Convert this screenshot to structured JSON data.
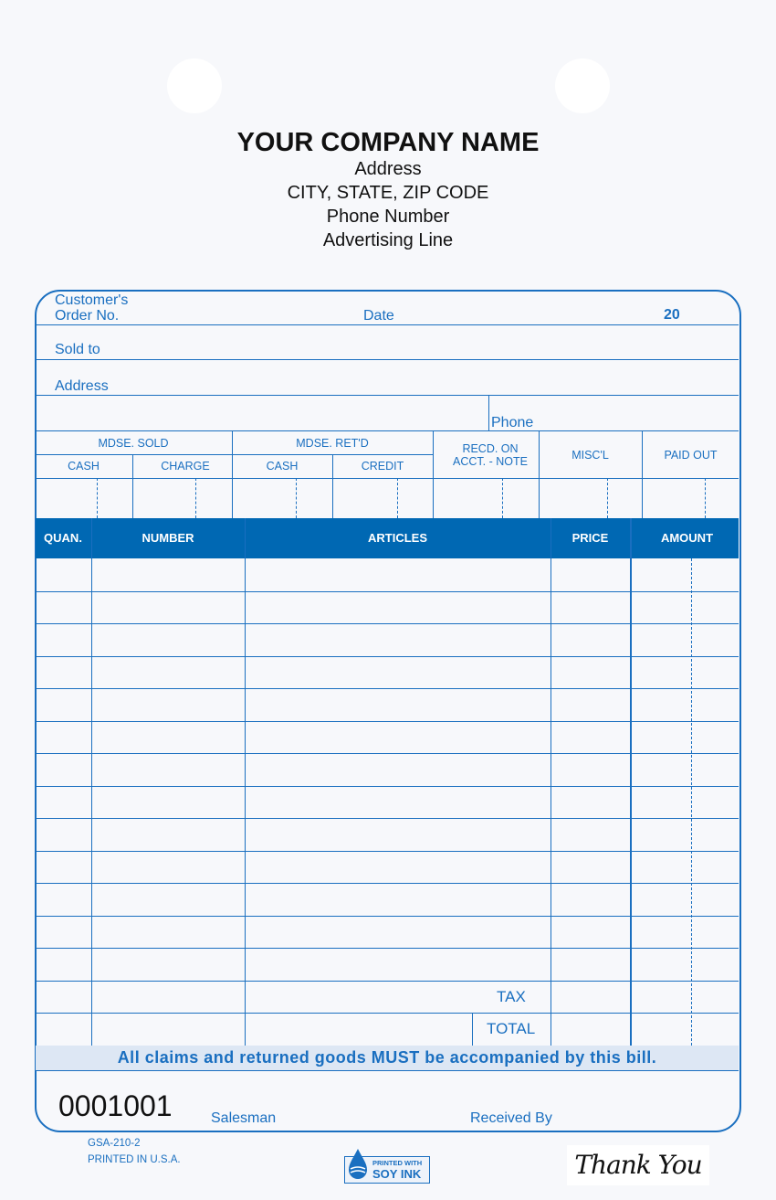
{
  "company": {
    "name": "YOUR COMPANY NAME",
    "address": "Address",
    "city_state_zip": "CITY, STATE, ZIP CODE",
    "phone": "Phone Number",
    "advertising": "Advertising Line"
  },
  "fields": {
    "order_no_line1": "Customer's",
    "order_no_line2": "Order No.",
    "date": "Date",
    "year_prefix": "20",
    "sold_to": "Sold to",
    "address": "Address",
    "phone": "Phone"
  },
  "summary": {
    "mdse_sold": "MDSE.  SOLD",
    "mdse_retd": "MDSE.  RET'D",
    "cash1": "CASH",
    "charge": "CHARGE",
    "cash2": "CASH",
    "credit": "CREDIT",
    "recd_line1": "RECD.  ON",
    "recd_line2": "ACCT.  -  NOTE",
    "miscl": "MISC'L",
    "paid_out": "PAID  OUT"
  },
  "table": {
    "columns": [
      "QUAN.",
      "NUMBER",
      "ARTICLES",
      "PRICE",
      "AMOUNT"
    ],
    "empty_rows": 13,
    "tax_label": "TAX",
    "total_label": "TOTAL"
  },
  "notice": "All claims and returned goods MUST be accompanied by this bill.",
  "footer": {
    "serial_number": "0001001",
    "salesman": "Salesman",
    "received_by": "Received By",
    "form_code": "GSA-210-2",
    "printed_in": "PRINTED  IN  U.S.A.",
    "soy_ink_line1": "PRINTED WITH",
    "soy_ink_line2": "SOY INK",
    "thank_you": "Thank You"
  },
  "colors": {
    "accent": "#1a6fc0",
    "header_fill": "#0068b3",
    "notice_fill": "#dde7f4"
  }
}
